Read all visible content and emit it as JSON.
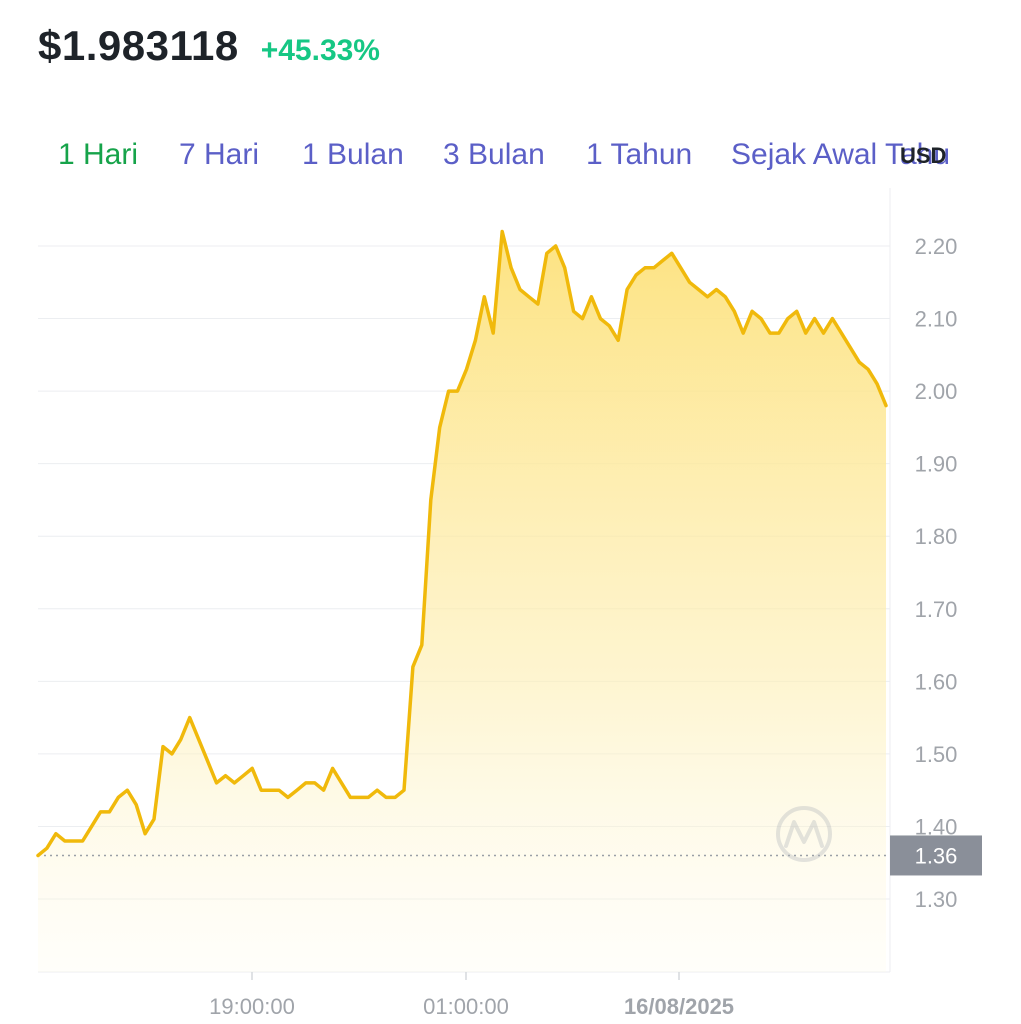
{
  "header": {
    "price": "$1.983118",
    "change": "+45.33%"
  },
  "tabs": [
    {
      "label": "1 Hari",
      "active": true
    },
    {
      "label": "7 Hari",
      "active": false
    },
    {
      "label": "1 Bulan",
      "active": false
    },
    {
      "label": "3 Bulan",
      "active": false
    },
    {
      "label": "1 Tahun",
      "active": false
    },
    {
      "label": "Sejak Awal Tahu",
      "active": false
    }
  ],
  "currency": "USD",
  "colors": {
    "line": "#f0b90b",
    "positive": "#16c784",
    "active_tab": "#16a34a",
    "inactive_tab": "#5b5fc7",
    "badge": "#8a8f99"
  },
  "chart_data": {
    "type": "area",
    "x_tick_labels": [
      "19:00:00",
      "01:00:00",
      "16/08/2025"
    ],
    "y_ticks": [
      1.3,
      1.4,
      1.5,
      1.6,
      1.7,
      1.8,
      1.9,
      2.0,
      2.1,
      2.2
    ],
    "y_tick_labels": [
      "1.30",
      "1.40",
      "1.50",
      "1.60",
      "1.70",
      "1.80",
      "1.90",
      "2.00",
      "2.10",
      "2.20"
    ],
    "ylim": [
      1.2,
      2.28
    ],
    "reference_value": 1.36,
    "reference_label": "1.36",
    "series": [
      {
        "values": [
          1.36,
          1.37,
          1.39,
          1.38,
          1.38,
          1.38,
          1.4,
          1.42,
          1.42,
          1.44,
          1.45,
          1.43,
          1.39,
          1.41,
          1.51,
          1.5,
          1.52,
          1.55,
          1.52,
          1.49,
          1.46,
          1.47,
          1.46,
          1.47,
          1.48,
          1.45,
          1.45,
          1.45,
          1.44,
          1.45,
          1.46,
          1.46,
          1.45,
          1.48,
          1.46,
          1.44,
          1.44,
          1.44,
          1.45,
          1.44,
          1.44,
          1.45,
          1.62,
          1.65,
          1.85,
          1.95,
          2.0,
          2.0,
          2.03,
          2.07,
          2.13,
          2.08,
          2.22,
          2.17,
          2.14,
          2.13,
          2.12,
          2.19,
          2.2,
          2.17,
          2.11,
          2.1,
          2.13,
          2.1,
          2.09,
          2.07,
          2.14,
          2.16,
          2.17,
          2.17,
          2.18,
          2.19,
          2.17,
          2.15,
          2.14,
          2.13,
          2.14,
          2.13,
          2.11,
          2.08,
          2.11,
          2.1,
          2.08,
          2.08,
          2.1,
          2.11,
          2.08,
          2.1,
          2.08,
          2.1,
          2.08,
          2.06,
          2.04,
          2.03,
          2.01,
          1.98
        ]
      }
    ],
    "grid": true
  },
  "watermark": "coinmarketcap-logo-icon"
}
